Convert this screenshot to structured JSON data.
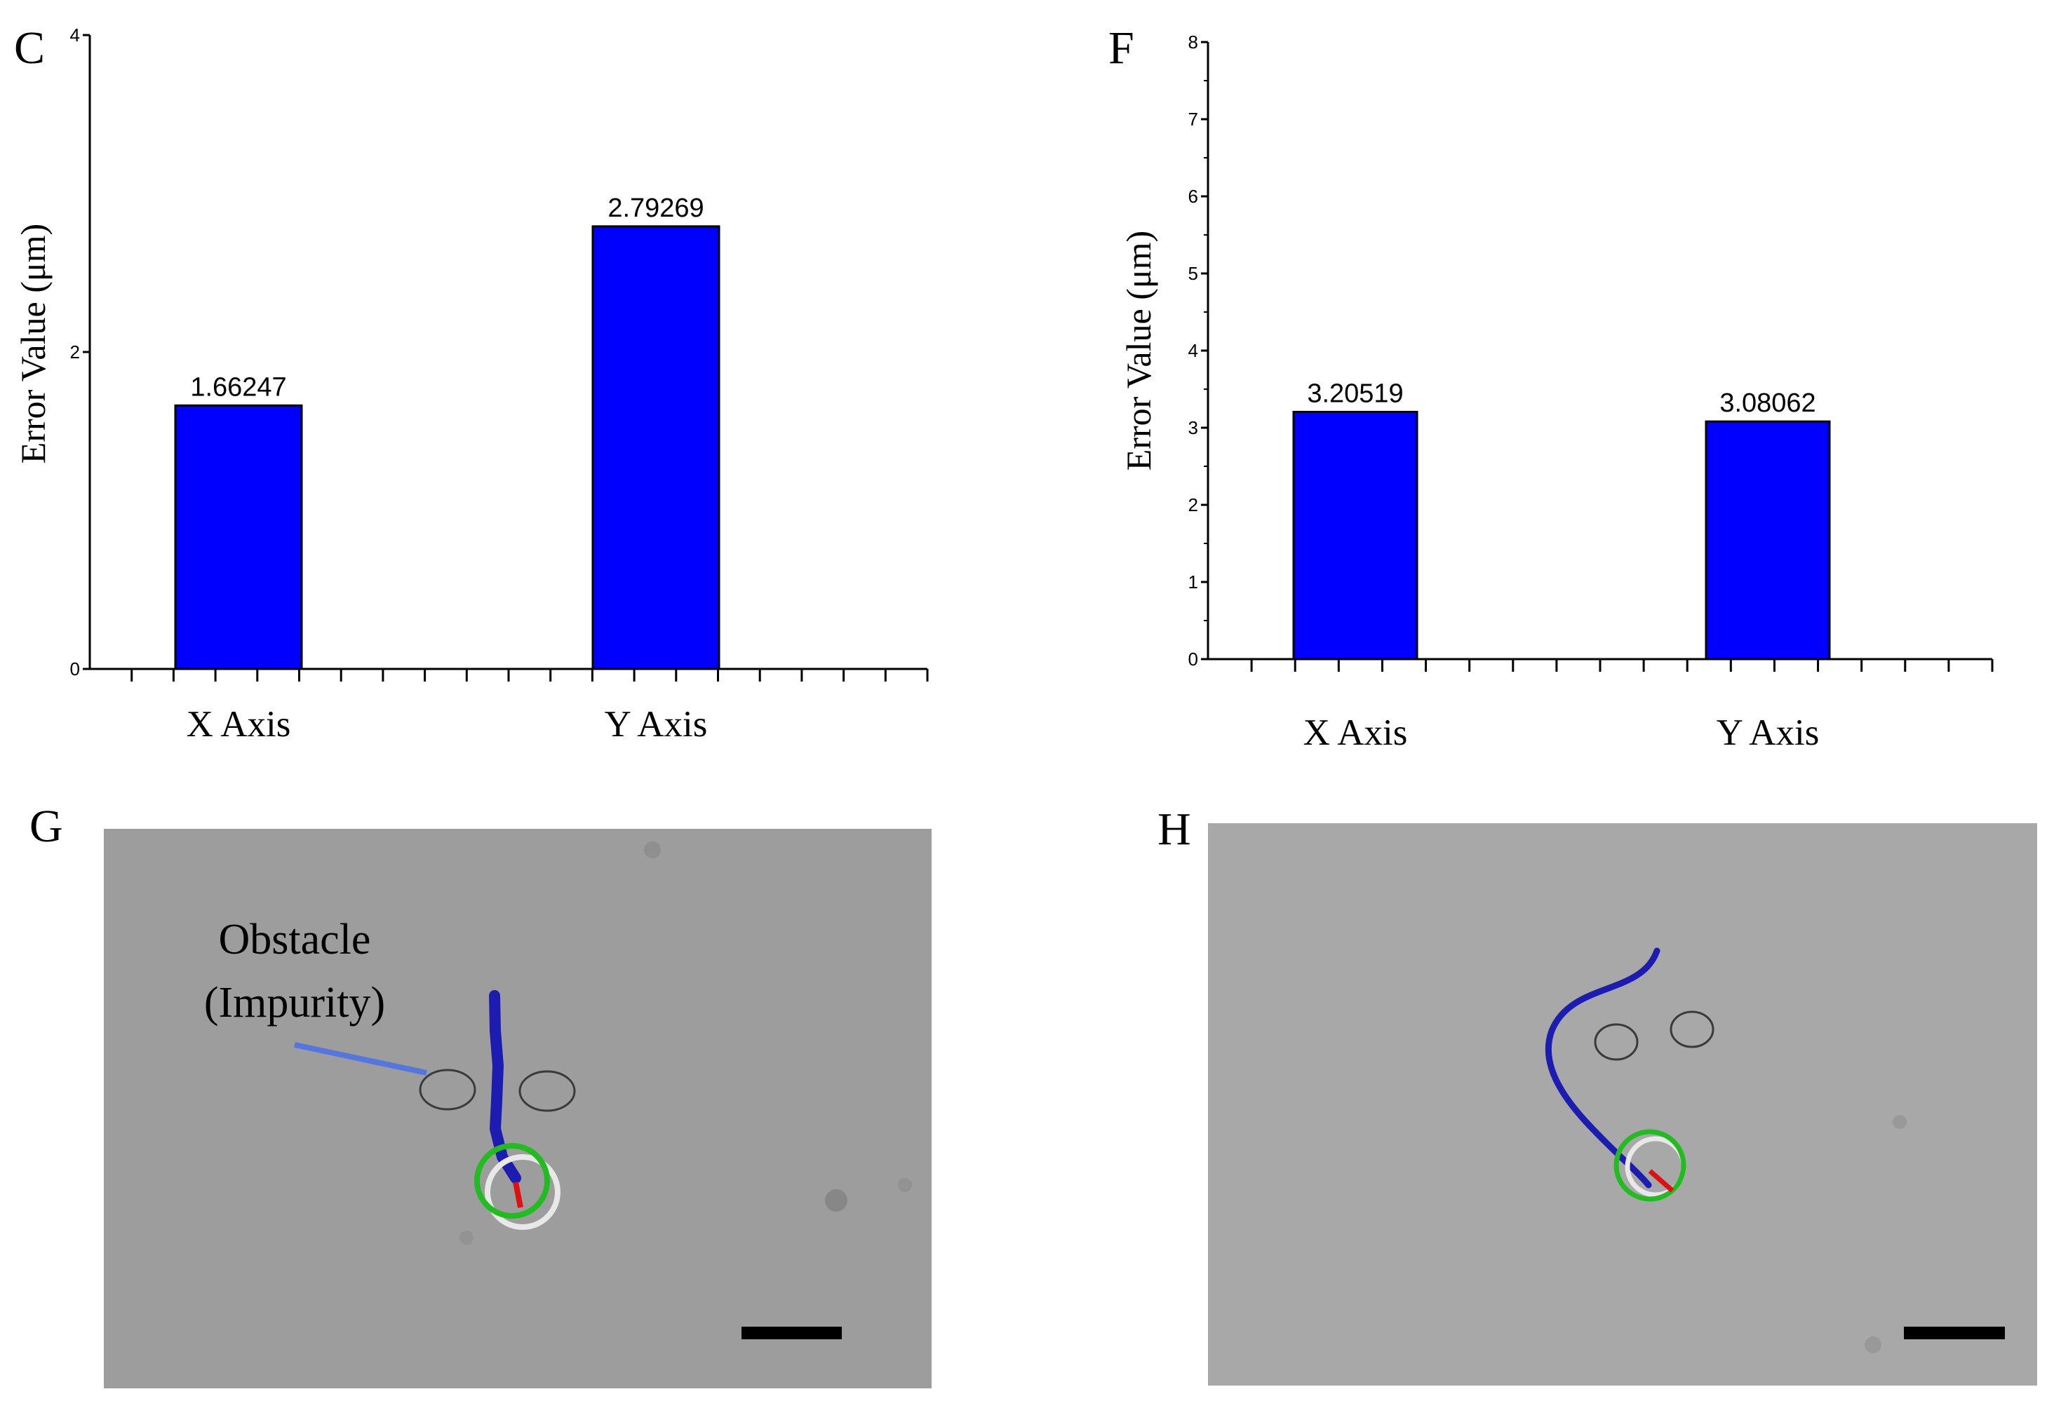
{
  "chart_data": [
    {
      "panel": "C",
      "type": "bar",
      "categories": [
        "X Axis",
        "Y Axis"
      ],
      "values": [
        1.66247,
        2.79269
      ],
      "data_labels": [
        "1.66247",
        "2.79269"
      ],
      "ylabel": "Error Value (μm)",
      "ylim": [
        0,
        4
      ],
      "yticks": [
        "0",
        "2",
        "4"
      ],
      "bar_color": "#0000ff"
    },
    {
      "panel": "F",
      "type": "bar",
      "categories": [
        "X Axis",
        "Y Axis"
      ],
      "values": [
        3.20519,
        3.08062
      ],
      "data_labels": [
        "3.20519",
        "3.08062"
      ],
      "ylabel": "Error Value (μm)",
      "ylim": [
        0,
        8
      ],
      "yticks": [
        "0",
        "1",
        "2",
        "3",
        "4",
        "5",
        "6",
        "7",
        "8"
      ],
      "bar_color": "#0000ff"
    }
  ],
  "images": [
    {
      "panel": "G",
      "annotation_line1": "Obstacle",
      "annotation_line2": "(Impurity)"
    },
    {
      "panel": "H"
    }
  ],
  "colors": {
    "trajectory": "#1c1cb0",
    "target_ring": "#22bb22",
    "heading": "#dd1111",
    "pointer": "#5577dd",
    "scale_bar": "#000000",
    "image_bg": "#9d9d9d"
  }
}
